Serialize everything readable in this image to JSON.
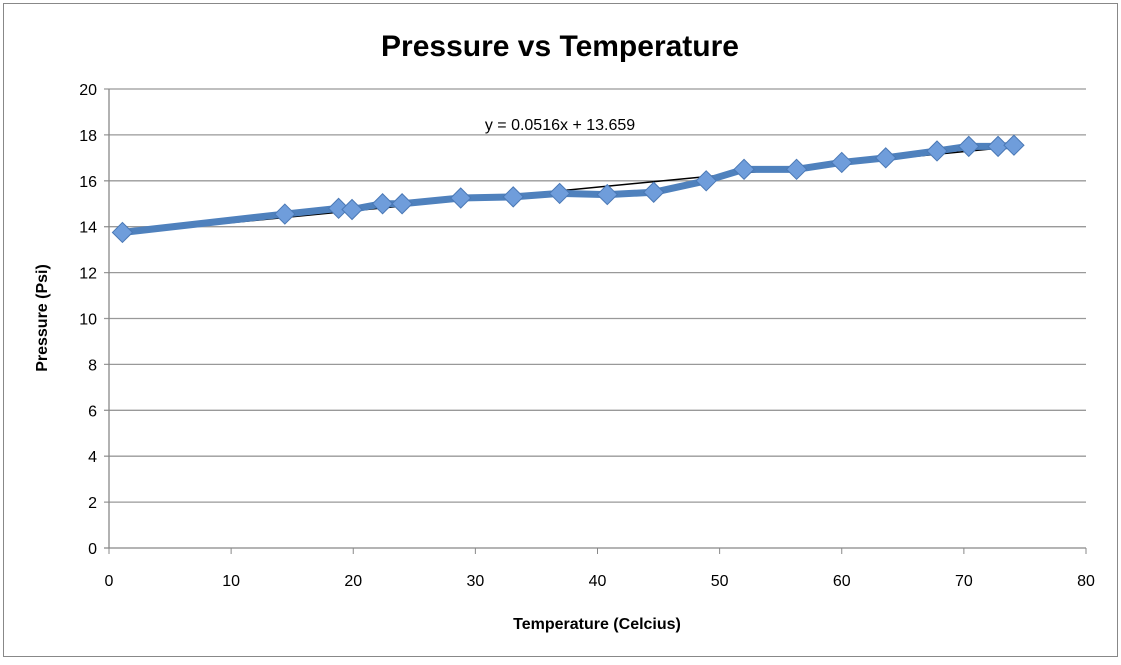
{
  "chart_data": {
    "type": "line",
    "title": "Pressure vs Temperature",
    "xlabel": "Temperature (Celcius)",
    "ylabel": "Pressure (Psi)",
    "xlim": [
      0,
      80
    ],
    "ylim": [
      0,
      20
    ],
    "xticks": [
      0,
      10,
      20,
      30,
      40,
      50,
      60,
      70,
      80
    ],
    "yticks": [
      0,
      2,
      4,
      6,
      8,
      10,
      12,
      14,
      16,
      18,
      20
    ],
    "grid": "horizontal",
    "series_color": "#4f81bd",
    "marker": "diamond",
    "x": [
      1.1,
      14.4,
      18.8,
      19.9,
      22.4,
      24.0,
      28.8,
      33.1,
      36.9,
      40.8,
      44.6,
      48.9,
      52.0,
      56.3,
      60.0,
      63.6,
      67.8,
      70.4,
      72.8,
      74.1
    ],
    "y": [
      13.75,
      14.55,
      14.8,
      14.75,
      15.0,
      15.0,
      15.25,
      15.3,
      15.45,
      15.4,
      15.5,
      16.0,
      16.5,
      16.5,
      16.8,
      17.0,
      17.3,
      17.5,
      17.5,
      17.55
    ],
    "trendline": {
      "slope": 0.0516,
      "intercept": 13.659,
      "label": "y = 0.0516x + 13.659",
      "color": "#000000"
    }
  }
}
